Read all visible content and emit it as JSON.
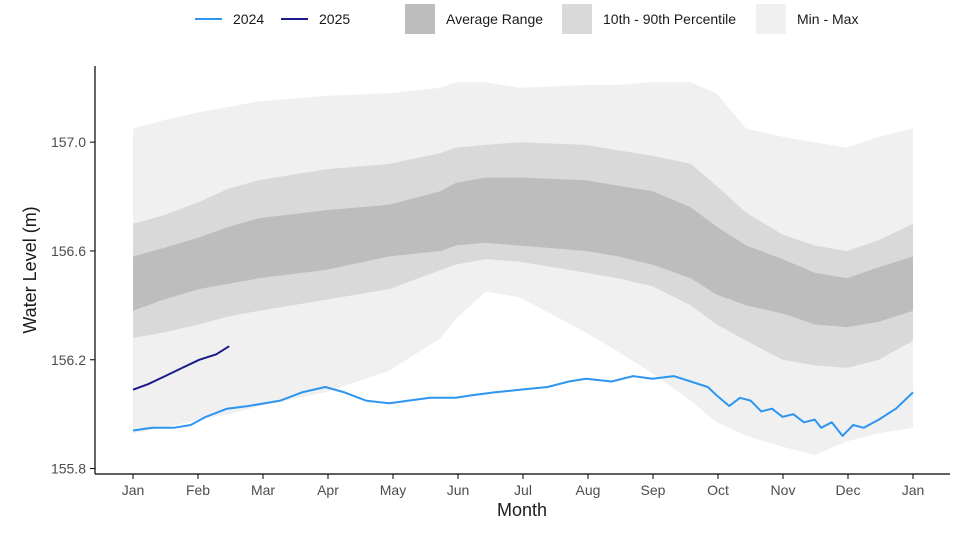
{
  "chart_data": {
    "type": "area",
    "xlabel": "Month",
    "ylabel": "Water Level (m)",
    "x_ticks": [
      "Jan",
      "Feb",
      "Mar",
      "Apr",
      "May",
      "Jun",
      "Jul",
      "Aug",
      "Sep",
      "Oct",
      "Nov",
      "Dec",
      "Jan"
    ],
    "y_ticks": [
      155.8,
      156.2,
      156.6,
      157.0
    ],
    "ylim": [
      155.78,
      157.28
    ],
    "xlim_day": [
      1,
      366
    ],
    "grid": false,
    "legend_position": "top",
    "legend": [
      {
        "label": "2024",
        "kind": "line",
        "color": "#2e95f0"
      },
      {
        "label": "2025",
        "kind": "line",
        "color": "#1a1a8c"
      },
      {
        "label": "Average Range",
        "kind": "fill",
        "color": "#bdbdbd"
      },
      {
        "label": "10th - 90th Percentile",
        "kind": "fill",
        "color": "#d9d9d9"
      },
      {
        "label": "Min - Max",
        "kind": "fill",
        "color": "#f0f0f0"
      }
    ],
    "bands": {
      "day": [
        1,
        15,
        32,
        46,
        60,
        91,
        121,
        145,
        152,
        166,
        182,
        213,
        228,
        244,
        262,
        274,
        288,
        305,
        320,
        335,
        350,
        366
      ],
      "min": [
        155.93,
        155.95,
        155.98,
        156.0,
        156.03,
        156.08,
        156.16,
        156.28,
        156.35,
        156.45,
        156.43,
        156.3,
        156.23,
        156.15,
        156.05,
        155.97,
        155.92,
        155.88,
        155.85,
        155.9,
        155.93,
        155.95
      ],
      "p10": [
        156.28,
        156.3,
        156.33,
        156.36,
        156.38,
        156.42,
        156.46,
        156.53,
        156.55,
        156.57,
        156.56,
        156.52,
        156.5,
        156.47,
        156.4,
        156.33,
        156.27,
        156.2,
        156.18,
        156.17,
        156.2,
        156.27
      ],
      "avg_low": [
        156.38,
        156.42,
        156.46,
        156.48,
        156.5,
        156.53,
        156.58,
        156.6,
        156.62,
        156.63,
        156.62,
        156.6,
        156.58,
        156.55,
        156.5,
        156.44,
        156.4,
        156.37,
        156.33,
        156.32,
        156.34,
        156.38
      ],
      "avg_high": [
        156.58,
        156.61,
        156.65,
        156.69,
        156.72,
        156.75,
        156.77,
        156.82,
        156.85,
        156.87,
        156.87,
        156.86,
        156.84,
        156.82,
        156.76,
        156.69,
        156.62,
        156.57,
        156.52,
        156.5,
        156.54,
        156.58
      ],
      "p90": [
        156.7,
        156.73,
        156.78,
        156.83,
        156.86,
        156.9,
        156.92,
        156.96,
        156.98,
        156.99,
        157.0,
        156.99,
        156.97,
        156.95,
        156.92,
        156.84,
        156.74,
        156.66,
        156.62,
        156.6,
        156.64,
        156.7
      ],
      "max": [
        157.05,
        157.08,
        157.11,
        157.13,
        157.15,
        157.17,
        157.18,
        157.2,
        157.22,
        157.22,
        157.2,
        157.21,
        157.21,
        157.22,
        157.22,
        157.18,
        157.05,
        157.02,
        157.0,
        156.98,
        157.02,
        157.05
      ]
    },
    "series": [
      {
        "name": "2024",
        "color": "#2e95f0",
        "day": [
          1,
          10,
          20,
          28,
          35,
          45,
          55,
          70,
          80,
          91,
          100,
          110,
          121,
          130,
          140,
          152,
          160,
          170,
          182,
          195,
          205,
          213,
          225,
          235,
          244,
          254,
          262,
          270,
          274,
          280,
          285,
          290,
          295,
          300,
          305,
          310,
          315,
          320,
          323,
          328,
          333,
          338,
          343,
          350,
          358,
          366
        ],
        "values": [
          155.94,
          155.95,
          155.95,
          155.96,
          155.99,
          156.02,
          156.03,
          156.05,
          156.08,
          156.1,
          156.08,
          156.05,
          156.04,
          156.05,
          156.06,
          156.06,
          156.07,
          156.08,
          156.09,
          156.1,
          156.12,
          156.13,
          156.12,
          156.14,
          156.13,
          156.14,
          156.12,
          156.1,
          156.07,
          156.03,
          156.06,
          156.05,
          156.01,
          156.02,
          155.99,
          156.0,
          155.97,
          155.98,
          155.95,
          155.97,
          155.92,
          155.96,
          155.95,
          155.98,
          156.02,
          156.08
        ]
      },
      {
        "name": "2025",
        "color": "#1a1a8c",
        "day": [
          1,
          8,
          16,
          24,
          32,
          40,
          46
        ],
        "values": [
          156.09,
          156.11,
          156.14,
          156.17,
          156.2,
          156.22,
          156.25
        ]
      }
    ]
  }
}
